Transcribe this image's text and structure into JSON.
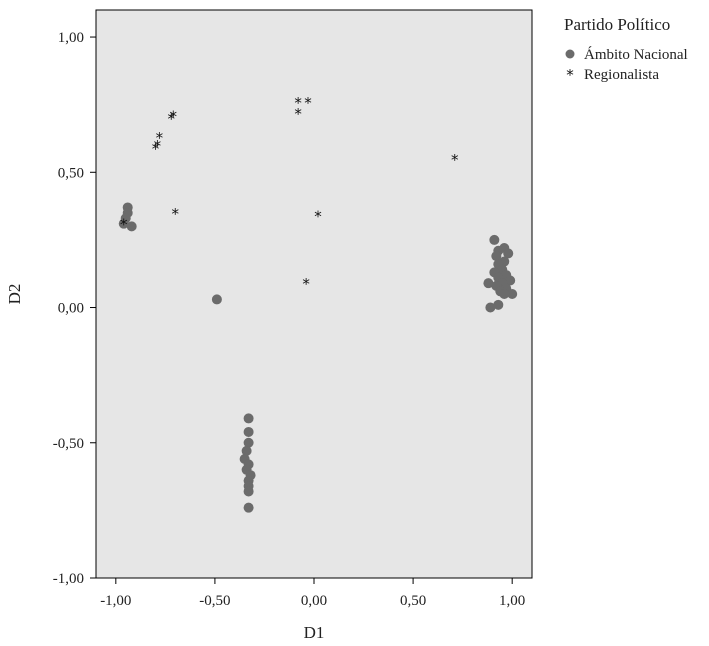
{
  "chart_data": {
    "type": "scatter",
    "xlabel": "D1",
    "ylabel": "D2",
    "xlim": [
      -1.1,
      1.1
    ],
    "ylim": [
      -1.0,
      1.1
    ],
    "xticks": [
      -1.0,
      -0.5,
      0.0,
      0.5,
      1.0
    ],
    "yticks": [
      -1.0,
      -0.5,
      0.0,
      0.5,
      1.0
    ],
    "xtick_labels": [
      "-1,00",
      "-0,50",
      "0,00",
      "0,50",
      "1,00"
    ],
    "ytick_labels": [
      "-1,00",
      "-0,50",
      "0,00",
      "0,50",
      "1,00"
    ],
    "grid": false,
    "legend": {
      "title": "Partido Político",
      "placement": "outside-top-right"
    },
    "series": [
      {
        "name": "Ámbito Nacional",
        "marker": "circle",
        "color": "#6b6b6b",
        "points": [
          [
            -0.94,
            0.37
          ],
          [
            -0.94,
            0.35
          ],
          [
            -0.95,
            0.33
          ],
          [
            -0.96,
            0.31
          ],
          [
            -0.92,
            0.3
          ],
          [
            -0.49,
            0.03
          ],
          [
            -0.33,
            -0.41
          ],
          [
            -0.33,
            -0.46
          ],
          [
            -0.33,
            -0.5
          ],
          [
            -0.34,
            -0.53
          ],
          [
            -0.35,
            -0.56
          ],
          [
            -0.33,
            -0.58
          ],
          [
            -0.34,
            -0.6
          ],
          [
            -0.32,
            -0.62
          ],
          [
            -0.33,
            -0.64
          ],
          [
            -0.33,
            -0.66
          ],
          [
            -0.33,
            -0.68
          ],
          [
            -0.33,
            -0.74
          ],
          [
            0.91,
            0.25
          ],
          [
            0.93,
            0.21
          ],
          [
            0.96,
            0.22
          ],
          [
            0.98,
            0.2
          ],
          [
            0.92,
            0.19
          ],
          [
            0.96,
            0.17
          ],
          [
            0.93,
            0.16
          ],
          [
            0.95,
            0.14
          ],
          [
            0.91,
            0.13
          ],
          [
            0.97,
            0.12
          ],
          [
            0.93,
            0.11
          ],
          [
            0.99,
            0.1
          ],
          [
            0.95,
            0.09
          ],
          [
            0.88,
            0.09
          ],
          [
            0.92,
            0.08
          ],
          [
            0.97,
            0.07
          ],
          [
            0.94,
            0.06
          ],
          [
            1.0,
            0.05
          ],
          [
            0.96,
            0.05
          ],
          [
            0.93,
            0.01
          ],
          [
            0.89,
            0.0
          ]
        ]
      },
      {
        "name": "Regionalista",
        "marker": "star",
        "color": "#111111",
        "points": [
          [
            -0.72,
            0.7
          ],
          [
            -0.71,
            0.71
          ],
          [
            -0.78,
            0.63
          ],
          [
            -0.79,
            0.6
          ],
          [
            -0.8,
            0.59
          ],
          [
            -0.7,
            0.35
          ],
          [
            -0.96,
            0.31
          ],
          [
            -0.08,
            0.76
          ],
          [
            -0.03,
            0.76
          ],
          [
            -0.08,
            0.72
          ],
          [
            0.02,
            0.34
          ],
          [
            -0.04,
            0.09
          ],
          [
            0.71,
            0.55
          ]
        ]
      }
    ]
  }
}
